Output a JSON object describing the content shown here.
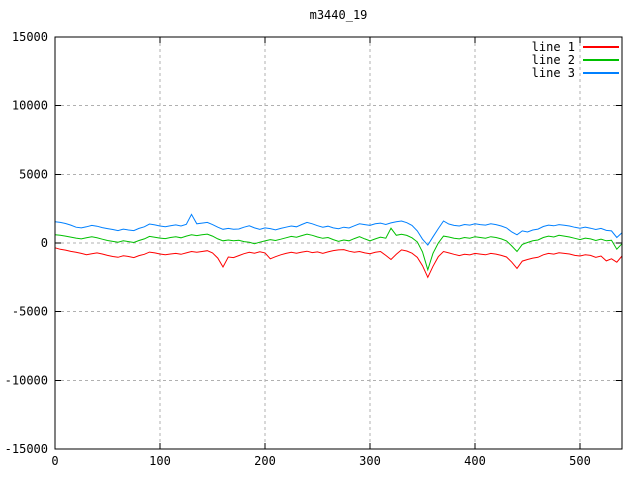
{
  "window": {
    "background": "#ffffff"
  },
  "chart_data": {
    "type": "line",
    "title": "m3440_19",
    "xlabel": "",
    "ylabel": "",
    "xlim": [
      0,
      540
    ],
    "ylim": [
      -15000,
      15000
    ],
    "xticks": [
      0,
      100,
      200,
      300,
      400,
      500
    ],
    "yticks": [
      -15000,
      -10000,
      -5000,
      0,
      5000,
      10000,
      15000
    ],
    "grid": true,
    "grid_color": "#b0b0b0",
    "axis_color": "#000000",
    "legend_position": "top-right-inside",
    "x": [
      0,
      5,
      10,
      15,
      20,
      25,
      30,
      35,
      40,
      45,
      50,
      55,
      60,
      65,
      70,
      75,
      80,
      85,
      90,
      95,
      100,
      105,
      110,
      115,
      120,
      125,
      130,
      135,
      140,
      145,
      150,
      155,
      160,
      165,
      170,
      175,
      180,
      185,
      190,
      195,
      200,
      205,
      210,
      215,
      220,
      225,
      230,
      235,
      240,
      245,
      250,
      255,
      260,
      265,
      270,
      275,
      280,
      285,
      290,
      295,
      300,
      305,
      310,
      315,
      320,
      325,
      330,
      335,
      340,
      345,
      350,
      355,
      360,
      365,
      370,
      375,
      380,
      385,
      390,
      395,
      400,
      405,
      410,
      415,
      420,
      425,
      430,
      435,
      440,
      445,
      450,
      455,
      460,
      465,
      470,
      475,
      480,
      485,
      490,
      495,
      500,
      505,
      510,
      515,
      520,
      525,
      530,
      535,
      540
    ],
    "series": [
      {
        "name": "line 1",
        "color": "#ff0000",
        "y": [
          -350,
          -460,
          -520,
          -610,
          -680,
          -760,
          -850,
          -780,
          -720,
          -800,
          -900,
          -980,
          -1040,
          -930,
          -980,
          -1060,
          -920,
          -820,
          -660,
          -720,
          -800,
          -860,
          -800,
          -760,
          -820,
          -720,
          -620,
          -680,
          -620,
          -560,
          -720,
          -1100,
          -1750,
          -1020,
          -1060,
          -920,
          -780,
          -680,
          -740,
          -640,
          -720,
          -1150,
          -1000,
          -860,
          -760,
          -680,
          -740,
          -660,
          -600,
          -700,
          -650,
          -760,
          -650,
          -550,
          -500,
          -480,
          -600,
          -680,
          -620,
          -720,
          -780,
          -680,
          -620,
          -900,
          -1200,
          -820,
          -500,
          -580,
          -740,
          -1050,
          -1650,
          -2500,
          -1700,
          -1000,
          -620,
          -720,
          -820,
          -920,
          -820,
          -870,
          -760,
          -810,
          -860,
          -760,
          -810,
          -900,
          -1020,
          -1400,
          -1850,
          -1320,
          -1200,
          -1100,
          -1040,
          -860,
          -760,
          -810,
          -710,
          -760,
          -800,
          -900,
          -950,
          -860,
          -900,
          -1050,
          -950,
          -1300,
          -1150,
          -1400,
          -950
        ]
      },
      {
        "name": "line 2",
        "color": "#00c000",
        "y": [
          600,
          560,
          500,
          430,
          360,
          300,
          380,
          450,
          380,
          280,
          180,
          120,
          60,
          160,
          100,
          40,
          180,
          300,
          480,
          420,
          360,
          320,
          400,
          450,
          380,
          500,
          600,
          540,
          600,
          650,
          500,
          300,
          160,
          220,
          160,
          200,
          100,
          50,
          -50,
          60,
          150,
          250,
          180,
          280,
          380,
          480,
          420,
          540,
          650,
          560,
          440,
          340,
          400,
          250,
          120,
          220,
          160,
          320,
          460,
          300,
          150,
          300,
          420,
          350,
          1080,
          560,
          640,
          550,
          380,
          80,
          -650,
          -1950,
          -750,
          0,
          500,
          440,
          350,
          300,
          400,
          350,
          460,
          400,
          350,
          460,
          400,
          300,
          150,
          -220,
          -620,
          -100,
          40,
          160,
          220,
          400,
          500,
          440,
          560,
          500,
          440,
          340,
          250,
          360,
          300,
          180,
          280,
          160,
          200,
          -450,
          -50
        ]
      },
      {
        "name": "line 3",
        "color": "#0080ff",
        "y": [
          1550,
          1500,
          1420,
          1300,
          1150,
          1100,
          1180,
          1280,
          1220,
          1120,
          1050,
          980,
          900,
          1010,
          950,
          900,
          1060,
          1180,
          1380,
          1320,
          1240,
          1180,
          1260,
          1320,
          1240,
          1360,
          2080,
          1400,
          1450,
          1500,
          1340,
          1150,
          1000,
          1060,
          1000,
          1020,
          1150,
          1250,
          1100,
          1000,
          1100,
          1050,
          960,
          1060,
          1150,
          1240,
          1180,
          1350,
          1500,
          1400,
          1260,
          1150,
          1220,
          1100,
          1040,
          1150,
          1090,
          1250,
          1400,
          1340,
          1280,
          1400,
          1450,
          1350,
          1460,
          1550,
          1600,
          1480,
          1280,
          880,
          280,
          -150,
          450,
          1050,
          1600,
          1380,
          1280,
          1240,
          1350,
          1300,
          1400,
          1340,
          1300,
          1400,
          1340,
          1240,
          1100,
          800,
          600,
          880,
          800,
          950,
          1010,
          1200,
          1300,
          1250,
          1340,
          1290,
          1240,
          1140,
          1080,
          1160,
          1080,
          980,
          1060,
          920,
          880,
          400,
          750
        ]
      }
    ]
  },
  "legend": {
    "items": [
      {
        "label": "line 1"
      },
      {
        "label": "line 2"
      },
      {
        "label": "line 3"
      }
    ]
  }
}
